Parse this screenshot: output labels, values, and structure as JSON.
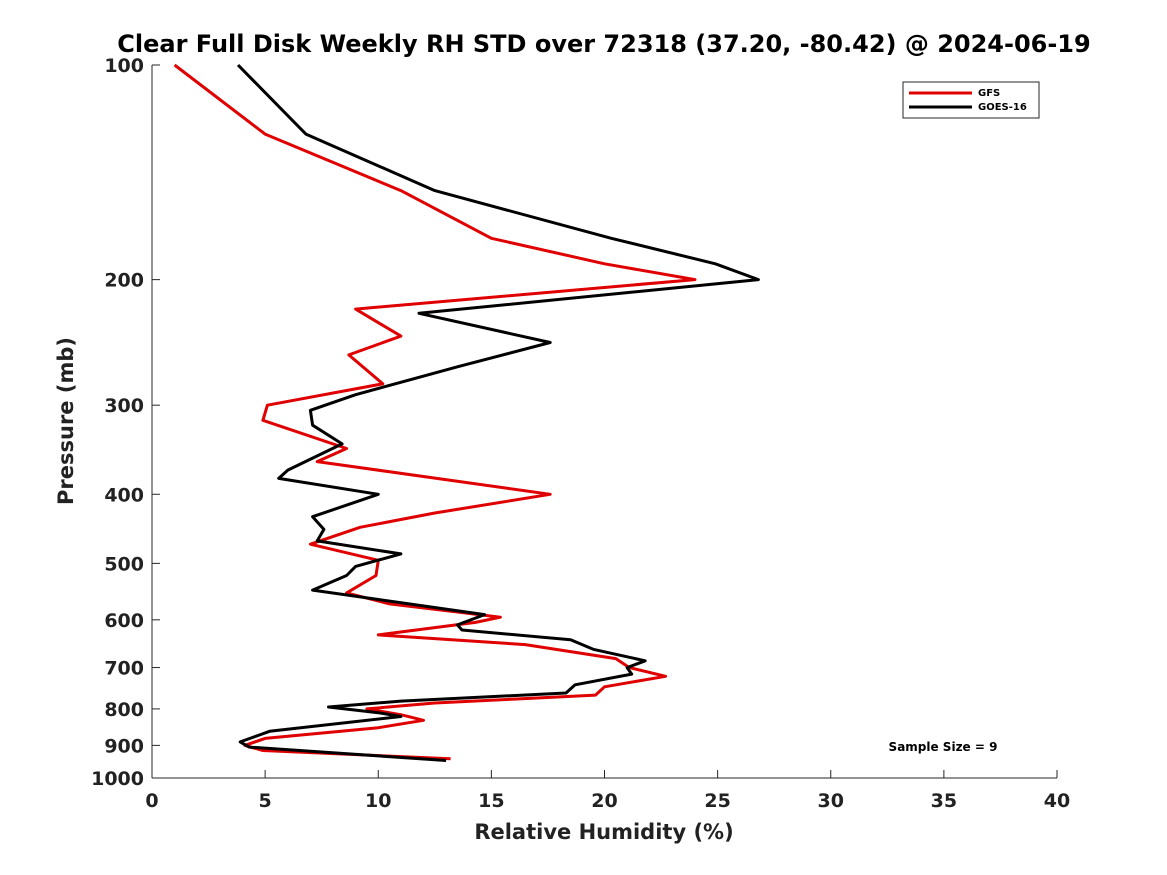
{
  "chart_data": {
    "type": "line",
    "title": "Clear Full Disk Weekly RH STD over 72318 (37.20, -80.42) @ 2024-06-19",
    "xlabel": "Relative Humidity (%)",
    "ylabel": "Pressure (mb)",
    "xlim": [
      0,
      40
    ],
    "ylim": [
      100,
      1000
    ],
    "yscale": "log",
    "y_reversed": true,
    "xticks": [
      0,
      5,
      10,
      15,
      20,
      25,
      30,
      35,
      40
    ],
    "yticks": [
      100,
      200,
      300,
      400,
      500,
      600,
      700,
      800,
      900,
      1000
    ],
    "grid": false,
    "legend_position": "top-right",
    "annotation": "Sample Size = 9",
    "series": [
      {
        "name": "GFS",
        "color": "#e00000",
        "points": [
          [
            1.0,
            100
          ],
          [
            5.0,
            125
          ],
          [
            11.0,
            150
          ],
          [
            15.0,
            175
          ],
          [
            20.0,
            190
          ],
          [
            24.0,
            200
          ],
          [
            9.0,
            220
          ],
          [
            11.0,
            240
          ],
          [
            8.7,
            255
          ],
          [
            10.2,
            280
          ],
          [
            5.1,
            300
          ],
          [
            4.9,
            315
          ],
          [
            8.6,
            345
          ],
          [
            7.3,
            360
          ],
          [
            17.6,
            400
          ],
          [
            12.5,
            425
          ],
          [
            9.2,
            445
          ],
          [
            7.0,
            470
          ],
          [
            10.0,
            495
          ],
          [
            9.9,
            520
          ],
          [
            8.6,
            550
          ],
          [
            10.5,
            570
          ],
          [
            13.5,
            585
          ],
          [
            15.4,
            595
          ],
          [
            14.3,
            605
          ],
          [
            10.0,
            630
          ],
          [
            16.5,
            650
          ],
          [
            20.5,
            680
          ],
          [
            21.1,
            700
          ],
          [
            22.7,
            720
          ],
          [
            20.0,
            745
          ],
          [
            19.6,
            765
          ],
          [
            16.0,
            775
          ],
          [
            12.5,
            785
          ],
          [
            9.5,
            800
          ],
          [
            11.0,
            815
          ],
          [
            12.0,
            830
          ],
          [
            10.0,
            850
          ],
          [
            5.0,
            880
          ],
          [
            4.1,
            900
          ],
          [
            4.9,
            915
          ],
          [
            13.2,
            940
          ]
        ]
      },
      {
        "name": "GOES-16",
        "color": "#000000",
        "points": [
          [
            3.8,
            100
          ],
          [
            6.8,
            125
          ],
          [
            12.5,
            150
          ],
          [
            20.3,
            175
          ],
          [
            24.9,
            190
          ],
          [
            26.8,
            200
          ],
          [
            11.8,
            223
          ],
          [
            17.6,
            245
          ],
          [
            13.5,
            265
          ],
          [
            9.0,
            290
          ],
          [
            7.0,
            305
          ],
          [
            7.1,
            320
          ],
          [
            8.4,
            340
          ],
          [
            6.0,
            370
          ],
          [
            5.6,
            380
          ],
          [
            10.0,
            400
          ],
          [
            7.1,
            430
          ],
          [
            7.6,
            448
          ],
          [
            7.3,
            465
          ],
          [
            11.0,
            485
          ],
          [
            9.0,
            505
          ],
          [
            8.6,
            520
          ],
          [
            7.1,
            545
          ],
          [
            14.7,
            590
          ],
          [
            13.5,
            610
          ],
          [
            13.7,
            620
          ],
          [
            18.5,
            640
          ],
          [
            19.5,
            660
          ],
          [
            21.8,
            685
          ],
          [
            21.0,
            700
          ],
          [
            21.2,
            715
          ],
          [
            18.7,
            740
          ],
          [
            18.3,
            760
          ],
          [
            11.0,
            780
          ],
          [
            7.8,
            795
          ],
          [
            10.0,
            810
          ],
          [
            11.0,
            820
          ],
          [
            5.2,
            860
          ],
          [
            3.9,
            890
          ],
          [
            4.3,
            905
          ],
          [
            13.0,
            945
          ]
        ]
      }
    ]
  }
}
